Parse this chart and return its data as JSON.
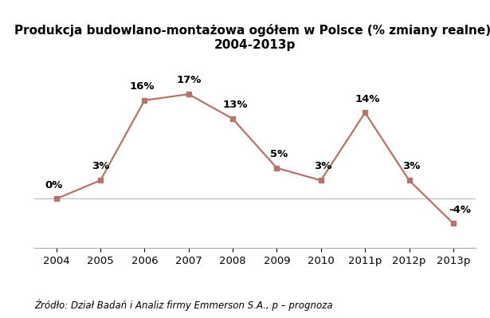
{
  "title": "Produkcja budowlano-montażowa ogółem w Polsce (% zmiany realne),\n2004-2013p",
  "categories": [
    "2004",
    "2005",
    "2006",
    "2007",
    "2008",
    "2009",
    "2010",
    "2011p",
    "2012p",
    "2013p"
  ],
  "values": [
    0,
    3,
    16,
    17,
    13,
    5,
    3,
    14,
    3,
    -4
  ],
  "labels": [
    "0%",
    "3%",
    "16%",
    "17%",
    "13%",
    "5%",
    "3%",
    "14%",
    "3%",
    "-4%"
  ],
  "line_color": "#b5736a",
  "marker_color": "#b5736a",
  "background_color": "#ffffff",
  "grid_color": "#cccccc",
  "title_fontsize": 11,
  "label_fontsize": 9.5,
  "tick_fontsize": 9.5,
  "source_text": "Źródło: Dział Badań i Analiz firmy Emmerson S.A., p – prognoza",
  "source_fontsize": 8.5,
  "ylim": [
    -8,
    23
  ]
}
